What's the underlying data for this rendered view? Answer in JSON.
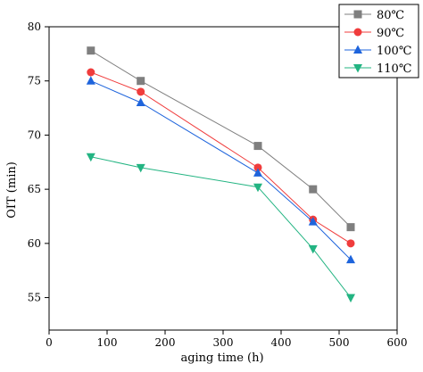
{
  "chart_data": {
    "type": "line",
    "title": "",
    "xlabel": "aging time (h)",
    "ylabel": "OIT (min)",
    "xlim": [
      0,
      600
    ],
    "ylim": [
      52,
      80
    ],
    "x_ticks": [
      0,
      100,
      200,
      300,
      400,
      500,
      600
    ],
    "y_ticks": [
      55,
      60,
      65,
      70,
      75,
      80
    ],
    "grid": false,
    "legend_position": "top-right",
    "x": [
      72,
      158,
      360,
      455,
      520
    ],
    "series": [
      {
        "name": "80℃",
        "color": "#7f7f7f",
        "marker": "square",
        "values": [
          77.8,
          75.0,
          69.0,
          65.0,
          61.5
        ]
      },
      {
        "name": "90℃",
        "color": "#f03c3c",
        "marker": "circle",
        "values": [
          75.8,
          74.0,
          67.0,
          62.2,
          60.0
        ]
      },
      {
        "name": "100℃",
        "color": "#1e64dc",
        "marker": "triangle-up",
        "values": [
          75.0,
          73.0,
          66.5,
          62.0,
          58.5
        ]
      },
      {
        "name": "110℃",
        "color": "#23b482",
        "marker": "triangle-down",
        "values": [
          68.0,
          67.0,
          65.2,
          59.5,
          55.0
        ]
      }
    ]
  }
}
